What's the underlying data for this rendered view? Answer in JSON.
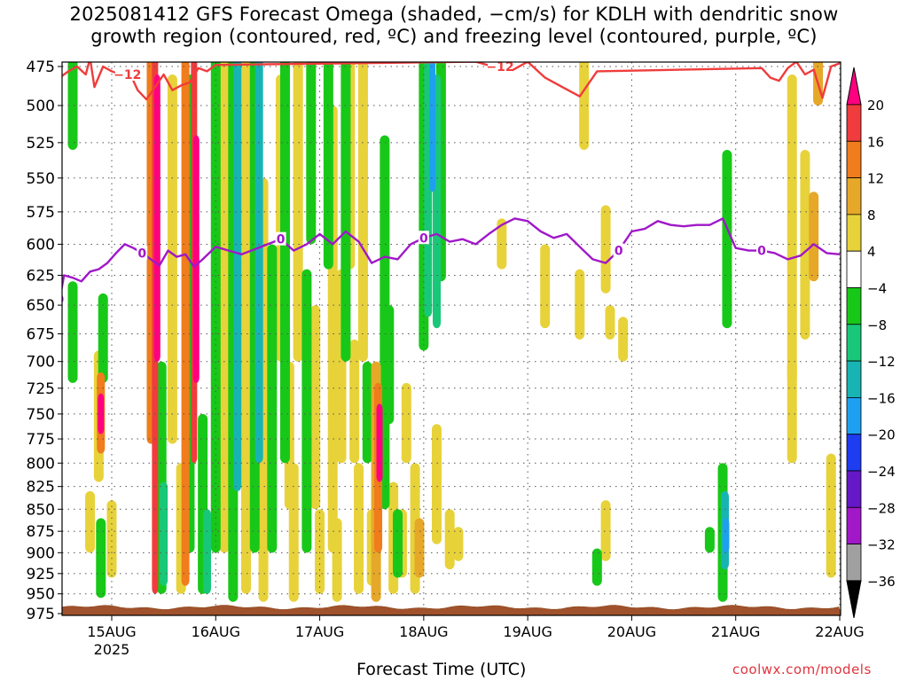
{
  "title_line1": "2025081412 GFS Forecast Omega (shaded, −cm/s) for KDLH with dendritic snow",
  "title_line2": "growth region (contoured, red, ºC) and freezing level (contoured, purple, ºC)",
  "credit": "coolwx.com/models",
  "chart_data": {
    "type": "heatmap",
    "xlabel": "Forecast Time (UTC)",
    "ylabel": "",
    "x_ticks": [
      {
        "label": "15AUG",
        "sub": "2025",
        "hour": 0
      },
      {
        "label": "16AUG",
        "hour": 24
      },
      {
        "label": "17AUG",
        "hour": 48
      },
      {
        "label": "18AUG",
        "hour": 72
      },
      {
        "label": "19AUG",
        "hour": 96
      },
      {
        "label": "20AUG",
        "hour": 120
      },
      {
        "label": "21AUG",
        "hour": 144
      },
      {
        "label": "22AUG",
        "hour": 168
      }
    ],
    "xlim_hours": [
      -12,
      168
    ],
    "y_ticks": [
      475,
      500,
      525,
      550,
      575,
      600,
      625,
      650,
      675,
      700,
      725,
      750,
      775,
      800,
      825,
      850,
      875,
      900,
      925,
      950,
      975
    ],
    "ylim_hpa": [
      470,
      975
    ],
    "y_scale": "log",
    "grid": true,
    "colorbar": {
      "labels": [
        "20",
        "16",
        "12",
        "8",
        "4",
        "−4",
        "−8",
        "−12",
        "−16",
        "−20",
        "−24",
        "−28",
        "−32",
        "−36"
      ],
      "colors": [
        "#ff0080",
        "#f03c3c",
        "#f07c1c",
        "#e6a828",
        "#e8d23a",
        "#ffffff",
        "#18c818",
        "#18c878",
        "#18b4b4",
        "#1ea0f0",
        "#1e3cf0",
        "#6418c8",
        "#a018c8",
        "#a0a0a0",
        "#000000"
      ]
    },
    "shading": [
      {
        "h": -9,
        "p1": 470,
        "p2": 530,
        "v": -6
      },
      {
        "h": -9,
        "p1": 630,
        "p2": 720,
        "v": -6
      },
      {
        "h": -5,
        "p1": 830,
        "p2": 900,
        "v": 5
      },
      {
        "h": -3,
        "p1": 690,
        "p2": 820,
        "v": 5
      },
      {
        "h": -2.5,
        "p1": 710,
        "p2": 790,
        "v": 13
      },
      {
        "h": -2.5,
        "p1": 730,
        "p2": 770,
        "v": 20
      },
      {
        "h": -2,
        "p1": 640,
        "p2": 720,
        "v": -6
      },
      {
        "h": -2.5,
        "p1": 860,
        "p2": 955,
        "v": -6
      },
      {
        "h": 0,
        "p1": 840,
        "p2": 930,
        "v": 5
      },
      {
        "h": 9,
        "p1": 470,
        "p2": 780,
        "v": 13
      },
      {
        "h": 10,
        "p1": 470,
        "p2": 950,
        "v": 17
      },
      {
        "h": 10.5,
        "p1": 480,
        "p2": 700,
        "v": 21
      },
      {
        "h": 11.5,
        "p1": 700,
        "p2": 950,
        "v": -6
      },
      {
        "h": 12,
        "p1": 820,
        "p2": 940,
        "v": -10
      },
      {
        "h": 14,
        "p1": 480,
        "p2": 780,
        "v": 5
      },
      {
        "h": 16,
        "p1": 800,
        "p2": 950,
        "v": 5
      },
      {
        "h": 17,
        "p1": 470,
        "p2": 940,
        "v": 13
      },
      {
        "h": 18,
        "p1": 480,
        "p2": 900,
        "v": -6
      },
      {
        "h": 19,
        "p1": 470,
        "p2": 800,
        "v": 17
      },
      {
        "h": 19.5,
        "p1": 520,
        "p2": 720,
        "v": 21
      },
      {
        "h": 21,
        "p1": 750,
        "p2": 950,
        "v": -6
      },
      {
        "h": 22,
        "p1": 850,
        "p2": 950,
        "v": -10
      },
      {
        "h": 24,
        "p1": 470,
        "p2": 900,
        "v": -6
      },
      {
        "h": 25,
        "p1": 480,
        "p2": 650,
        "v": 5
      },
      {
        "h": 26,
        "p1": 470,
        "p2": 900,
        "v": 5
      },
      {
        "h": 28,
        "p1": 470,
        "p2": 960,
        "v": -6
      },
      {
        "h": 29,
        "p1": 470,
        "p2": 830,
        "v": -14
      },
      {
        "h": 31,
        "p1": 470,
        "p2": 950,
        "v": 5
      },
      {
        "h": 33,
        "p1": 470,
        "p2": 900,
        "v": -6
      },
      {
        "h": 34,
        "p1": 470,
        "p2": 800,
        "v": -14
      },
      {
        "h": 35,
        "p1": 550,
        "p2": 960,
        "v": 5
      },
      {
        "h": 37,
        "p1": 600,
        "p2": 900,
        "v": -6
      },
      {
        "h": 39,
        "p1": 480,
        "p2": 700,
        "v": 5
      },
      {
        "h": 40,
        "p1": 470,
        "p2": 800,
        "v": -6
      },
      {
        "h": 41,
        "p1": 700,
        "p2": 850,
        "v": 5
      },
      {
        "h": 42,
        "p1": 800,
        "p2": 960,
        "v": 5
      },
      {
        "h": 43,
        "p1": 470,
        "p2": 700,
        "v": 5
      },
      {
        "h": 45,
        "p1": 620,
        "p2": 900,
        "v": -6
      },
      {
        "h": 46,
        "p1": 470,
        "p2": 600,
        "v": -6
      },
      {
        "h": 47,
        "p1": 650,
        "p2": 850,
        "v": 5
      },
      {
        "h": 48,
        "p1": 850,
        "p2": 950,
        "v": 5
      },
      {
        "h": 50,
        "p1": 470,
        "p2": 620,
        "v": -6
      },
      {
        "h": 51,
        "p1": 500,
        "p2": 900,
        "v": 5
      },
      {
        "h": 52,
        "p1": 860,
        "p2": 960,
        "v": 5
      },
      {
        "h": 53,
        "p1": 620,
        "p2": 800,
        "v": 5
      },
      {
        "h": 54,
        "p1": 470,
        "p2": 700,
        "v": -6
      },
      {
        "h": 55,
        "p1": 470,
        "p2": 620,
        "v": 5
      },
      {
        "h": 56,
        "p1": 680,
        "p2": 800,
        "v": 5
      },
      {
        "h": 57,
        "p1": 800,
        "p2": 950,
        "v": 5
      },
      {
        "h": 58,
        "p1": 470,
        "p2": 700,
        "v": 5
      },
      {
        "h": 59,
        "p1": 700,
        "p2": 800,
        "v": -6
      },
      {
        "h": 60,
        "p1": 850,
        "p2": 940,
        "v": 5
      },
      {
        "h": 61,
        "p1": 700,
        "p2": 960,
        "v": 9
      },
      {
        "h": 61.5,
        "p1": 720,
        "p2": 900,
        "v": 13
      },
      {
        "h": 61.8,
        "p1": 740,
        "p2": 820,
        "v": 21
      },
      {
        "h": 63,
        "p1": 520,
        "p2": 850,
        "v": -6
      },
      {
        "h": 64,
        "p1": 650,
        "p2": 760,
        "v": -6
      },
      {
        "h": 65,
        "p1": 820,
        "p2": 950,
        "v": 5
      },
      {
        "h": 66,
        "p1": 850,
        "p2": 930,
        "v": -6
      },
      {
        "h": 67,
        "p1": 850,
        "p2": 930,
        "v": 5
      },
      {
        "h": 68,
        "p1": 720,
        "p2": 800,
        "v": 5
      },
      {
        "h": 70,
        "p1": 800,
        "p2": 950,
        "v": 5
      },
      {
        "h": 71,
        "p1": 860,
        "p2": 930,
        "v": 9
      },
      {
        "h": 72,
        "p1": 470,
        "p2": 690,
        "v": -6
      },
      {
        "h": 73,
        "p1": 470,
        "p2": 660,
        "v": -10
      },
      {
        "h": 74,
        "p1": 470,
        "p2": 560,
        "v": -18
      },
      {
        "h": 75,
        "p1": 480,
        "p2": 670,
        "v": -10
      },
      {
        "h": 76,
        "p1": 470,
        "p2": 630,
        "v": -6
      },
      {
        "h": 75,
        "p1": 760,
        "p2": 890,
        "v": 5
      },
      {
        "h": 78,
        "p1": 850,
        "p2": 920,
        "v": 5
      },
      {
        "h": 80,
        "p1": 870,
        "p2": 910,
        "v": 5
      },
      {
        "h": 114,
        "p1": 570,
        "p2": 640,
        "v": 5
      },
      {
        "h": 115,
        "p1": 650,
        "p2": 680,
        "v": 5
      },
      {
        "h": 114,
        "p1": 840,
        "p2": 910,
        "v": 5
      },
      {
        "h": 118,
        "p1": 660,
        "p2": 700,
        "v": 5
      },
      {
        "h": 112,
        "p1": 895,
        "p2": 940,
        "v": -6
      },
      {
        "h": 142,
        "p1": 530,
        "p2": 670,
        "v": -6
      },
      {
        "h": 141,
        "p1": 800,
        "p2": 960,
        "v": -6
      },
      {
        "h": 141.5,
        "p1": 830,
        "p2": 920,
        "v": -14
      },
      {
        "h": 141.8,
        "p1": 860,
        "p2": 900,
        "v": -18
      },
      {
        "h": 138,
        "p1": 870,
        "p2": 900,
        "v": -6
      },
      {
        "h": 160,
        "p1": 530,
        "p2": 680,
        "v": 5
      },
      {
        "h": 157,
        "p1": 480,
        "p2": 720,
        "v": 5
      },
      {
        "h": 157,
        "p1": 700,
        "p2": 800,
        "v": 5
      },
      {
        "h": 162,
        "p1": 560,
        "p2": 630,
        "v": 9
      },
      {
        "h": 163,
        "p1": 460,
        "p2": 500,
        "v": 9
      },
      {
        "h": 166,
        "p1": 790,
        "p2": 930,
        "v": 5
      },
      {
        "h": 90,
        "p1": 580,
        "p2": 620,
        "v": 5
      },
      {
        "h": 109,
        "p1": 470,
        "p2": 530,
        "v": 5
      },
      {
        "h": 100,
        "p1": 600,
        "p2": 670,
        "v": 5
      },
      {
        "h": 108,
        "p1": 620,
        "p2": 680,
        "v": 5
      }
    ],
    "series": [
      {
        "name": "0",
        "color": "#a018c8",
        "label": "0",
        "x": [
          -12,
          -11,
          -9,
          -7,
          -5,
          -3,
          -1,
          1,
          3,
          5,
          7,
          9,
          11,
          13,
          15,
          17,
          19,
          21,
          24,
          27,
          30,
          33,
          36,
          39,
          42,
          45,
          48,
          51,
          54,
          57,
          60,
          63,
          66,
          69,
          72,
          75,
          78,
          81,
          84,
          87,
          90,
          93,
          96,
          99,
          102,
          105,
          108,
          111,
          114,
          117,
          120,
          123,
          126,
          129,
          132,
          135,
          138,
          141,
          144,
          147,
          150,
          153,
          156,
          159,
          162,
          165,
          168
        ],
        "y": [
          645,
          625,
          627,
          630,
          622,
          620,
          615,
          607,
          600,
          603,
          607,
          612,
          617,
          605,
          610,
          608,
          618,
          612,
          602,
          605,
          608,
          604,
          600,
          596,
          605,
          600,
          592,
          600,
          590,
          598,
          615,
          610,
          612,
          600,
          595,
          592,
          598,
          596,
          600,
          592,
          585,
          580,
          582,
          590,
          595,
          592,
          602,
          612,
          615,
          605,
          590,
          588,
          582,
          585,
          586,
          585,
          585,
          580,
          603,
          605,
          605,
          607,
          612,
          609,
          600,
          607,
          608
        ]
      },
      {
        "name": "-12",
        "color": "#f03c3c",
        "label": "−12",
        "x": [
          -12,
          -10,
          -8,
          -6,
          -5,
          -4,
          -2,
          0,
          2,
          4,
          6,
          8,
          10,
          12,
          14,
          16,
          18,
          20,
          22,
          24,
          84,
          88,
          92,
          96,
          100,
          104,
          108,
          112,
          150,
          152,
          154,
          156,
          158,
          160,
          162,
          164,
          166,
          168
        ],
        "y": [
          482,
          478,
          475,
          480,
          470,
          488,
          475,
          478,
          480,
          478,
          490,
          496,
          488,
          480,
          490,
          487,
          485,
          476,
          478,
          474,
          472,
          475,
          478,
          472,
          482,
          488,
          494,
          478,
          476,
          482,
          484,
          476,
          472,
          480,
          477,
          495,
          475,
          473
        ]
      }
    ]
  }
}
